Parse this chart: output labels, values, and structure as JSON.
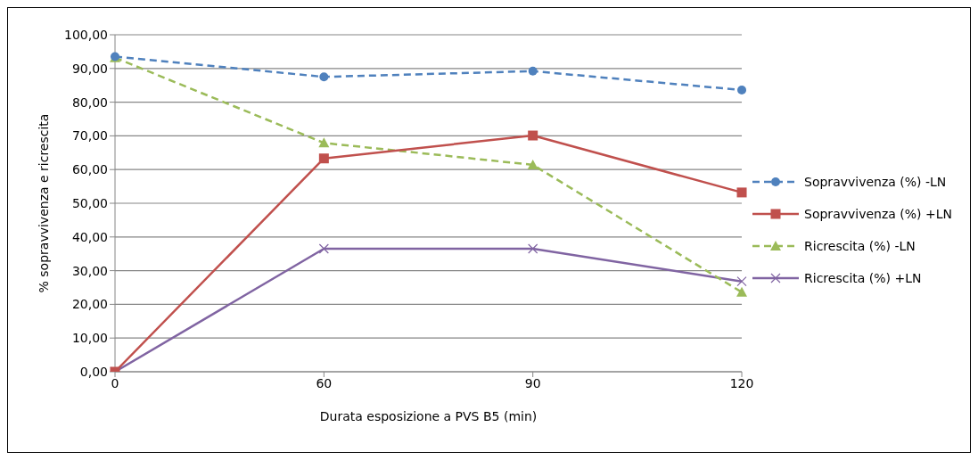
{
  "chart_data": {
    "type": "line",
    "xlabel": "Durata esposizione a PVS B5 (min)",
    "ylabel": "% sopravvivenza e ricrescita",
    "categories": [
      "0",
      "60",
      "90",
      "120"
    ],
    "series": [
      {
        "name": "Sopravvivenza (%) -LN",
        "color": "#4f81bd",
        "marker": "circle",
        "line_style": "dashed",
        "values": [
          93.5,
          87.5,
          89.2,
          83.6
        ]
      },
      {
        "name": "Sopravvivenza (%) +LN",
        "color": "#c0504d",
        "marker": "square",
        "line_style": "solid",
        "values": [
          0,
          63.3,
          70.1,
          53.2
        ]
      },
      {
        "name": "Ricrescita (%) -LN",
        "color": "#9bbb59",
        "marker": "triangle",
        "line_style": "dashed",
        "values": [
          93.2,
          67.9,
          61.4,
          23.6
        ]
      },
      {
        "name": "Ricrescita (%) +LN",
        "color": "#8064a2",
        "marker": "cross",
        "line_style": "solid",
        "values": [
          0,
          36.5,
          36.5,
          26.8
        ]
      }
    ],
    "ylim": [
      0,
      100
    ],
    "yticks": [
      {
        "value": 0,
        "label": "0,00"
      },
      {
        "value": 10,
        "label": "10,00"
      },
      {
        "value": 20,
        "label": "20,00"
      },
      {
        "value": 30,
        "label": "30,00"
      },
      {
        "value": 40,
        "label": "40,00"
      },
      {
        "value": 50,
        "label": "50,00"
      },
      {
        "value": 60,
        "label": "60,00"
      },
      {
        "value": 70,
        "label": "70,00"
      },
      {
        "value": 80,
        "label": "80,00"
      },
      {
        "value": 90,
        "label": "90,00"
      },
      {
        "value": 100,
        "label": "100,00"
      }
    ],
    "grid": "y",
    "legend": "right"
  }
}
